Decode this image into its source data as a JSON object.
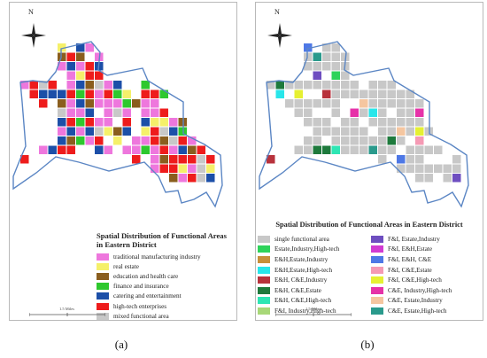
{
  "north_label": "N",
  "scale_label": "1.5 Miles",
  "captions": [
    "(a)",
    "(b)"
  ],
  "colors": {
    "boundary": "#5b86c4",
    "trad": "#ee77dd",
    "estate": "#f5f06a",
    "edu": "#8a5e1e",
    "finance": "#2ec82e",
    "catering": "#1c4fa8",
    "hightech": "#ee1c1c",
    "mixed": "#c8c8c8"
  },
  "legend_a": {
    "title": "Spatial Distribution of Functional Areas in Eastern District",
    "items": [
      {
        "label": "traditional manufacturing industry",
        "color": "#ee77dd"
      },
      {
        "label": "real estate",
        "color": "#f5f06a"
      },
      {
        "label": "education and health care",
        "color": "#8a5e1e"
      },
      {
        "label": "finance and insurance",
        "color": "#2ec82e"
      },
      {
        "label": "catering and entertainment",
        "color": "#1c4fa8"
      },
      {
        "label": "high-tech enterprises",
        "color": "#ee1c1c"
      },
      {
        "label": "mixed functional area",
        "color": "#c8c8c8"
      }
    ]
  },
  "legend_b": {
    "title": "Spatial Distribution of Functional Areas in Eastern District",
    "items": [
      {
        "label": "single functional area",
        "color": "#c8c8c8"
      },
      {
        "label": "F&I, Estate,Industry",
        "color": "#6e4ec0"
      },
      {
        "label": "Estate,Industry,High-tech",
        "color": "#2ed35a"
      },
      {
        "label": "F&I, E&H,Estate",
        "color": "#d23bd2"
      },
      {
        "label": "E&H,Estate,Industry",
        "color": "#c8903a"
      },
      {
        "label": "F&I, E&H, C&E",
        "color": "#4e78e6"
      },
      {
        "label": "E&H,Estate,High-tech",
        "color": "#28e6ea"
      },
      {
        "label": "F&I, C&E,Estate",
        "color": "#f59ab4"
      },
      {
        "label": "E&H, C&E,Industry",
        "color": "#b8323c"
      },
      {
        "label": "F&I, C&E,High-tech",
        "color": "#e6f032"
      },
      {
        "label": "E&H, C&E,Estate",
        "color": "#1e7a3c"
      },
      {
        "label": "C&E, Industry,High-tech",
        "color": "#e632a8"
      },
      {
        "label": "E&H, C&E,High-tech",
        "color": "#2ee6b4"
      },
      {
        "label": "C&E, Estate,Industry",
        "color": "#f5c6a0"
      },
      {
        "label": "F&I, Industry,High-tech",
        "color": "#a8d878"
      },
      {
        "label": "C&E, Estate,High-tech",
        "color": "#2a9a8c"
      }
    ]
  }
}
